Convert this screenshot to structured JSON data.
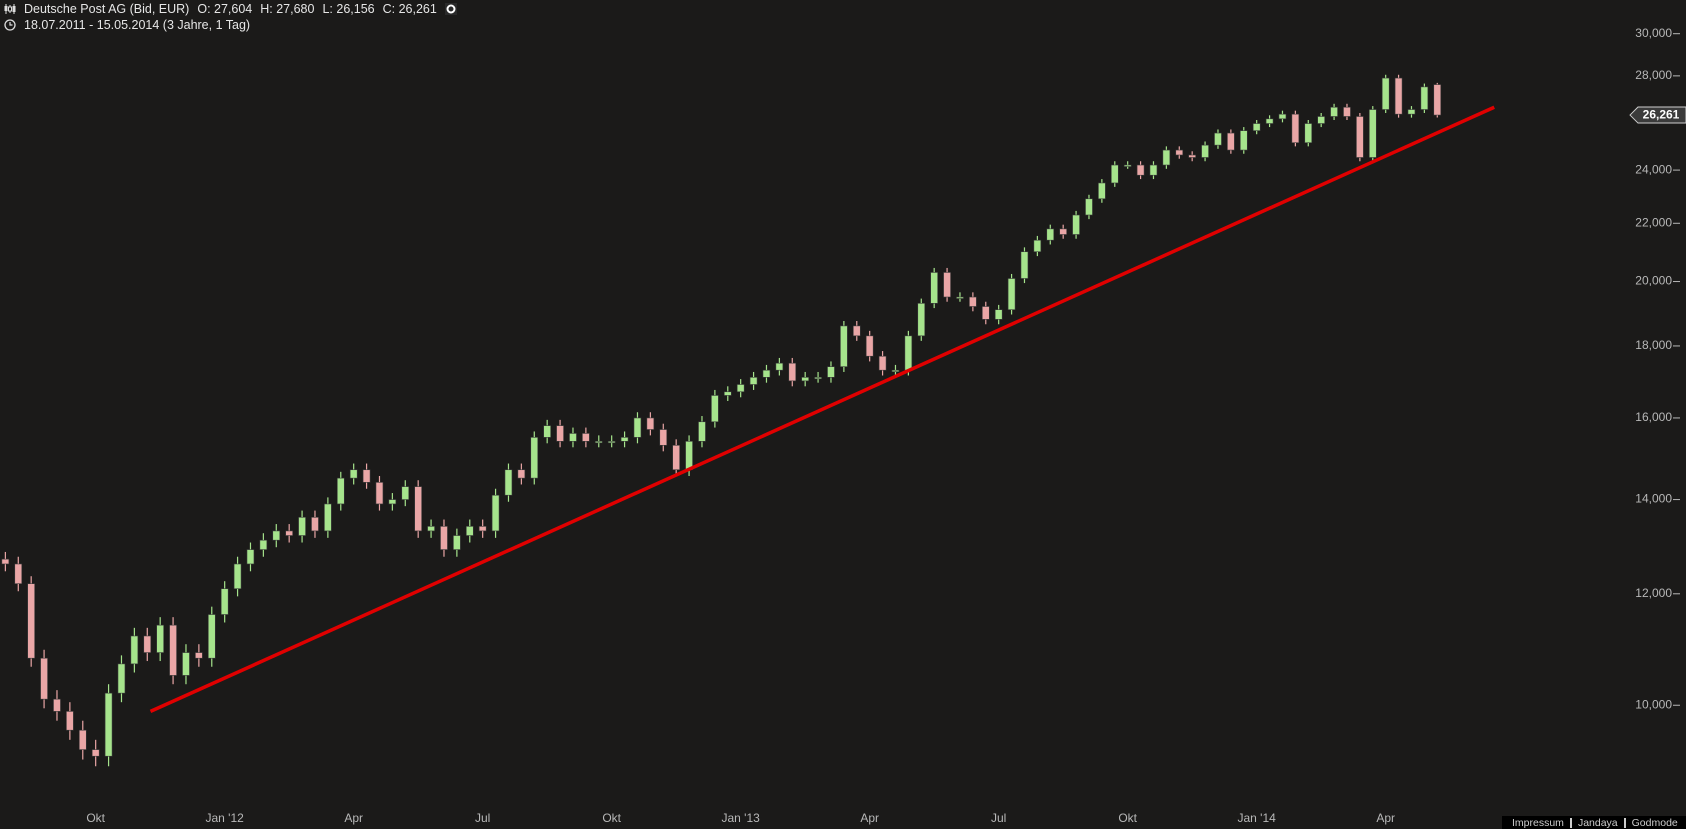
{
  "chart_data": {
    "type": "candlestick",
    "title": "Deutsche Post AG (Bid, EUR)",
    "ohlc_header": [
      "O: 27,604",
      "H: 27,680",
      "L: 26,156",
      "C: 26,261"
    ],
    "subtitle": "18.07.2011 - 15.05.2014 (3 Jahre, 1 Tag)",
    "categories": [
      null,
      null,
      null,
      null,
      null,
      null,
      null,
      "Okt",
      null,
      null,
      null,
      null,
      null,
      null,
      null,
      null,
      null,
      "Jan '12",
      null,
      null,
      null,
      null,
      null,
      null,
      null,
      null,
      null,
      "Apr",
      null,
      null,
      null,
      null,
      null,
      null,
      null,
      null,
      null,
      "Jul",
      null,
      null,
      null,
      null,
      null,
      null,
      null,
      null,
      null,
      "Okt",
      null,
      null,
      null,
      null,
      null,
      null,
      null,
      null,
      null,
      "Jan '13",
      null,
      null,
      null,
      null,
      null,
      null,
      null,
      null,
      null,
      "Apr",
      null,
      null,
      null,
      null,
      null,
      null,
      null,
      null,
      null,
      "Jul",
      null,
      null,
      null,
      null,
      null,
      null,
      null,
      null,
      null,
      "Okt",
      null,
      null,
      null,
      null,
      null,
      null,
      null,
      null,
      null,
      "Jan '14",
      null,
      null,
      null,
      null,
      null,
      null,
      null,
      null,
      null,
      "Apr",
      null,
      null,
      null,
      null
    ],
    "open": [
      12700,
      12600,
      12200,
      10800,
      10100,
      9900,
      9600,
      9300,
      9200,
      10200,
      10700,
      11200,
      10900,
      11400,
      10500,
      10900,
      10800,
      11600,
      12100,
      12600,
      12900,
      13100,
      13300,
      13200,
      13600,
      13300,
      13900,
      14500,
      14700,
      14400,
      13900,
      14000,
      14300,
      13300,
      13400,
      12900,
      13200,
      13400,
      13300,
      14100,
      14700,
      14500,
      15500,
      15800,
      15400,
      15600,
      15400,
      15400,
      15400,
      15500,
      16000,
      15700,
      15300,
      14700,
      15400,
      15900,
      16600,
      16700,
      16900,
      17100,
      17300,
      17500,
      17000,
      17100,
      17100,
      17400,
      18600,
      18300,
      17700,
      17300,
      17300,
      18300,
      19300,
      20300,
      19500,
      19500,
      19200,
      18800,
      19100,
      20100,
      21000,
      21400,
      21800,
      21600,
      22300,
      22900,
      23500,
      24200,
      24200,
      23800,
      24200,
      24800,
      24600,
      24500,
      25000,
      25500,
      24800,
      25600,
      25900,
      26100,
      26300,
      25100,
      25900,
      26200,
      26600,
      26200,
      24500,
      26500,
      27900,
      26300,
      26500,
      27604
    ],
    "high": [
      12850,
      12750,
      12350,
      10950,
      10250,
      10050,
      9750,
      9450,
      10350,
      10850,
      11350,
      11350,
      11550,
      11550,
      11050,
      11050,
      11750,
      12250,
      12750,
      13050,
      13250,
      13450,
      13450,
      13750,
      13750,
      14050,
      14650,
      14850,
      14850,
      14550,
      14150,
      14450,
      14450,
      13550,
      13550,
      13350,
      13550,
      13550,
      14250,
      14850,
      14850,
      15650,
      15950,
      15950,
      15750,
      15750,
      15550,
      15550,
      15650,
      16150,
      16150,
      15850,
      15450,
      15550,
      16050,
      16750,
      16850,
      17050,
      17250,
      17450,
      17650,
      17650,
      17250,
      17250,
      17550,
      18750,
      18750,
      18450,
      17850,
      17450,
      18450,
      19450,
      20450,
      20450,
      19650,
      19650,
      19350,
      19250,
      20250,
      21150,
      21550,
      21950,
      21950,
      22450,
      23050,
      23650,
      24350,
      24350,
      24350,
      24350,
      24950,
      24950,
      24750,
      25150,
      25650,
      25650,
      25750,
      26050,
      26250,
      26450,
      26450,
      26050,
      26350,
      26750,
      26750,
      26350,
      26650,
      28050,
      28050,
      26650,
      27650,
      27680
    ],
    "low": [
      12450,
      12050,
      10650,
      9950,
      9750,
      9450,
      9150,
      9050,
      9050,
      10050,
      10550,
      10750,
      10750,
      10350,
      10350,
      10650,
      10650,
      11450,
      11950,
      12450,
      12750,
      12950,
      13050,
      13050,
      13150,
      13150,
      13750,
      14350,
      14250,
      13750,
      13750,
      13850,
      13150,
      13150,
      12750,
      12750,
      13050,
      13150,
      13150,
      13950,
      14350,
      14350,
      15350,
      15250,
      15250,
      15250,
      15250,
      15250,
      15250,
      15350,
      15550,
      15150,
      14550,
      14550,
      15250,
      15750,
      16450,
      16550,
      16750,
      16950,
      17150,
      16850,
      16850,
      16950,
      16950,
      17250,
      18150,
      17550,
      17150,
      17150,
      17150,
      18150,
      19150,
      19350,
      19350,
      19050,
      18650,
      18650,
      18950,
      19950,
      20850,
      21250,
      21450,
      21450,
      22150,
      22750,
      23350,
      24050,
      23650,
      23650,
      24050,
      24450,
      24350,
      24350,
      24850,
      24650,
      24650,
      25450,
      25750,
      25950,
      24950,
      24950,
      25750,
      26050,
      26050,
      24350,
      24350,
      26350,
      26150,
      26150,
      26350,
      26156
    ],
    "close": [
      12600,
      12200,
      10800,
      10100,
      9900,
      9600,
      9300,
      9200,
      10200,
      10700,
      11200,
      10900,
      11400,
      10500,
      10900,
      10800,
      11600,
      12100,
      12600,
      12900,
      13100,
      13300,
      13200,
      13600,
      13300,
      13900,
      14500,
      14700,
      14400,
      13900,
      14000,
      14300,
      13300,
      13400,
      12900,
      13200,
      13400,
      13300,
      14100,
      14700,
      14500,
      15500,
      15800,
      15400,
      15600,
      15400,
      15400,
      15400,
      15500,
      16000,
      15700,
      15300,
      14700,
      15400,
      15900,
      16600,
      16700,
      16900,
      17100,
      17300,
      17500,
      17000,
      17100,
      17100,
      17400,
      18600,
      18300,
      17700,
      17300,
      17300,
      18300,
      19300,
      20300,
      19500,
      19500,
      19200,
      18800,
      19100,
      20100,
      21000,
      21400,
      21800,
      21600,
      22300,
      22900,
      23500,
      24200,
      24200,
      23800,
      24200,
      24800,
      24600,
      24500,
      25000,
      25500,
      24800,
      25600,
      25900,
      26100,
      26300,
      25100,
      25900,
      26200,
      26600,
      26200,
      24500,
      26500,
      27900,
      26300,
      26500,
      27500,
      26261
    ],
    "up_color": "#a6e48c",
    "down_color": "#eaa6a6",
    "ylim": [
      8550,
      31700
    ],
    "log_scale": true,
    "yticks": [
      {
        "value": 10000,
        "label": "10,000"
      },
      {
        "value": 12000,
        "label": "12,000"
      },
      {
        "value": 14000,
        "label": "14,000"
      },
      {
        "value": 16000,
        "label": "16,000"
      },
      {
        "value": 18000,
        "label": "18,000"
      },
      {
        "value": 20000,
        "label": "20,000"
      },
      {
        "value": 22000,
        "label": "22,000"
      },
      {
        "value": 24000,
        "label": "24,000"
      },
      {
        "value": 28000,
        "label": "28,000"
      },
      {
        "value": 30000,
        "label": "30,000"
      }
    ],
    "grid": false,
    "trendline": {
      "color": "#e00000",
      "values": [
        9900,
        26600
      ]
    },
    "last_price": {
      "value": 26261,
      "label": "26,261"
    }
  },
  "footer_links": [
    "Impressum",
    "Jandaya",
    "Godmode"
  ]
}
